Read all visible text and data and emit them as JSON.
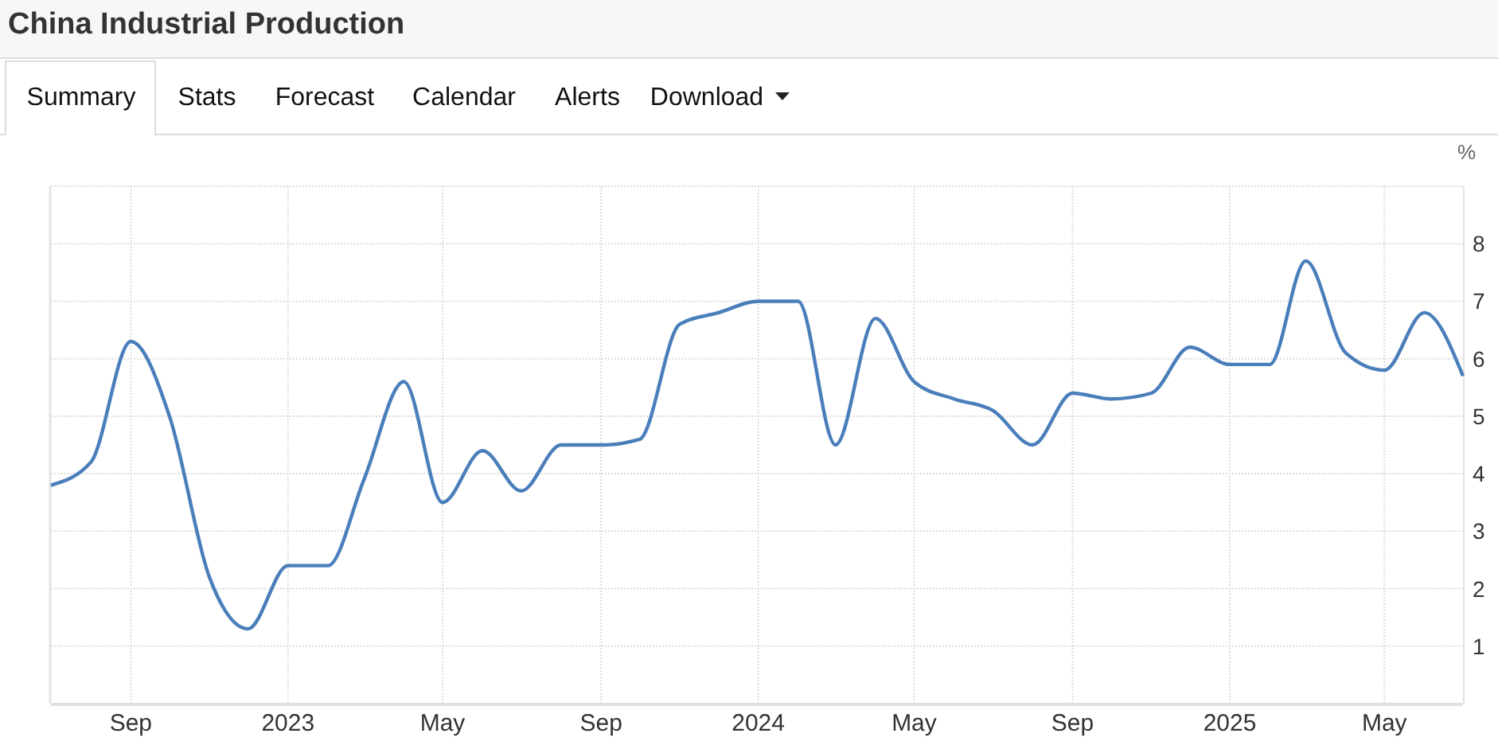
{
  "chart_data": {
    "type": "line",
    "title": "China Industrial Production",
    "ylabel": "%",
    "annotations": [
      "Summary",
      "Stats",
      "Forecast",
      "Calendar",
      "Alerts",
      "Download"
    ],
    "x": [
      "2022-07",
      "2022-08",
      "2022-09",
      "2022-10",
      "2022-11",
      "2022-12",
      "2023-01",
      "2023-02",
      "2023-03",
      "2023-04",
      "2023-05",
      "2023-06",
      "2023-07",
      "2023-08",
      "2023-09",
      "2023-10",
      "2023-11",
      "2023-12",
      "2024-01",
      "2024-02",
      "2024-03",
      "2024-04",
      "2024-05",
      "2024-06",
      "2024-07",
      "2024-08",
      "2024-09",
      "2024-10",
      "2024-11",
      "2024-12",
      "2025-01",
      "2025-02",
      "2025-03",
      "2025-04",
      "2025-05",
      "2025-06",
      "2025-07"
    ],
    "series": [
      {
        "color": "#4a7ebb",
        "values": [
          3.8,
          4.2,
          6.3,
          5.0,
          2.2,
          1.3,
          2.4,
          2.4,
          3.9,
          5.6,
          3.5,
          4.4,
          3.7,
          4.5,
          4.5,
          4.6,
          6.6,
          6.8,
          7.0,
          7.0,
          4.5,
          6.7,
          5.6,
          5.3,
          5.1,
          4.5,
          5.4,
          5.3,
          5.4,
          6.2,
          5.9,
          5.9,
          7.7,
          6.1,
          5.8,
          6.8,
          5.7
        ]
      }
    ],
    "xlim": [
      "2022-07",
      "2025-07"
    ],
    "xticks": [
      {
        "value": "2022-09",
        "label": "Sep"
      },
      {
        "value": "2023-01",
        "label": "2023"
      },
      {
        "value": "2023-05",
        "label": "May"
      },
      {
        "value": "2023-09",
        "label": "Sep"
      },
      {
        "value": "2024-01",
        "label": "2024"
      },
      {
        "value": "2024-05",
        "label": "May"
      },
      {
        "value": "2024-09",
        "label": "Sep"
      },
      {
        "value": "2025-01",
        "label": "2025"
      },
      {
        "value": "2025-05",
        "label": "May"
      }
    ],
    "ylim": [
      0,
      9
    ],
    "yticks": [
      1,
      2,
      3,
      4,
      5,
      6,
      7,
      8
    ],
    "grid": true,
    "line_style": "solid",
    "marker": "none"
  }
}
